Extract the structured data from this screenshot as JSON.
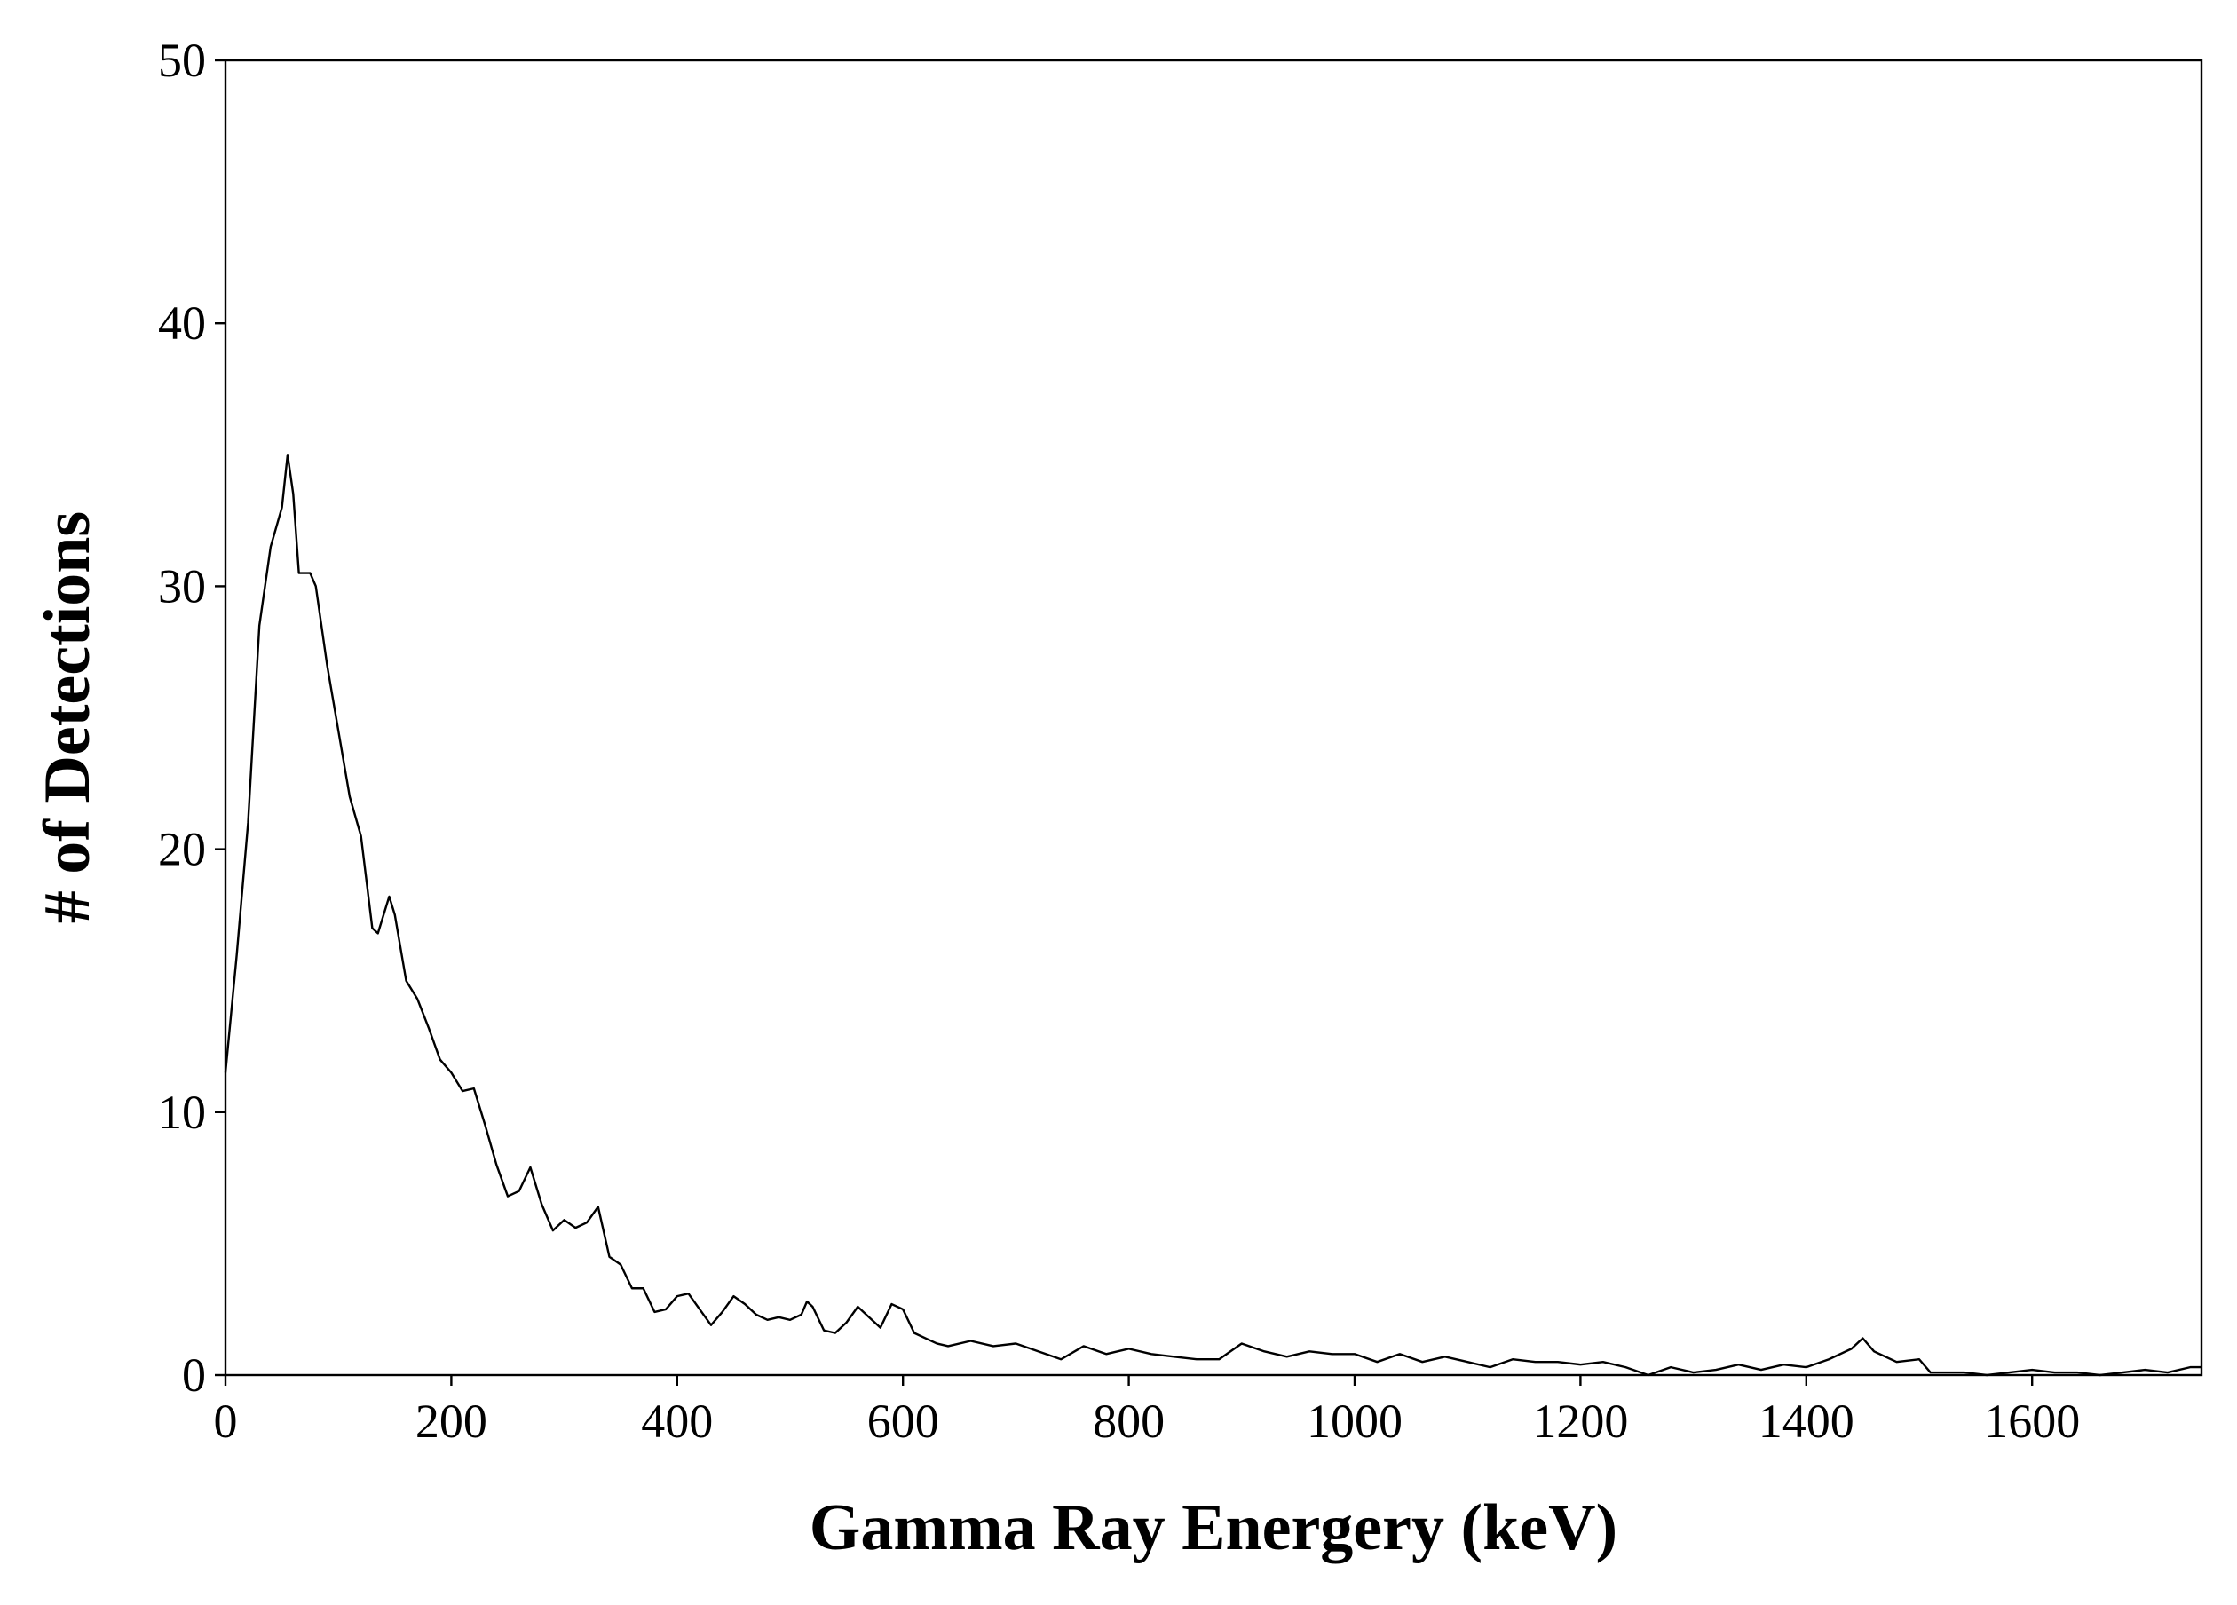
{
  "chart_data": {
    "type": "line",
    "xlabel": "Gamma Ray Energery (keV)",
    "ylabel": "# of Detections",
    "x": [
      0,
      10,
      20,
      30,
      40,
      50,
      55,
      60,
      65,
      70,
      75,
      80,
      90,
      100,
      110,
      120,
      130,
      135,
      140,
      145,
      150,
      160,
      170,
      180,
      190,
      200,
      210,
      220,
      230,
      240,
      250,
      260,
      270,
      280,
      290,
      300,
      310,
      320,
      330,
      340,
      350,
      360,
      370,
      380,
      390,
      400,
      410,
      420,
      430,
      440,
      450,
      460,
      470,
      480,
      490,
      500,
      510,
      515,
      520,
      530,
      540,
      550,
      560,
      570,
      580,
      590,
      600,
      610,
      620,
      630,
      640,
      660,
      680,
      700,
      720,
      740,
      760,
      780,
      800,
      820,
      840,
      860,
      880,
      900,
      920,
      940,
      960,
      980,
      1000,
      1020,
      1040,
      1060,
      1080,
      1100,
      1120,
      1140,
      1160,
      1180,
      1200,
      1220,
      1240,
      1260,
      1280,
      1300,
      1320,
      1340,
      1360,
      1380,
      1400,
      1420,
      1440,
      1450,
      1460,
      1480,
      1500,
      1510,
      1540,
      1560,
      1600,
      1620,
      1640,
      1660,
      1680,
      1700,
      1720,
      1740,
      1750
    ],
    "values": [
      11.5,
      16,
      21,
      28.5,
      31.5,
      33,
      35,
      33.5,
      30.5,
      30.5,
      30.5,
      30,
      27,
      24.5,
      22,
      20.5,
      17,
      16.8,
      17.5,
      18.2,
      17.5,
      15,
      14.3,
      13.2,
      12,
      11.5,
      10.8,
      10.9,
      9.5,
      8,
      6.8,
      7,
      7.9,
      6.5,
      5.5,
      5.9,
      5.6,
      5.8,
      6.4,
      4.5,
      4.2,
      3.3,
      3.3,
      2.4,
      2.5,
      3,
      3.1,
      2.5,
      1.9,
      2.4,
      3,
      2.7,
      2.3,
      2.1,
      2.2,
      2.1,
      2.3,
      2.8,
      2.6,
      1.7,
      1.6,
      2,
      2.6,
      2.2,
      1.8,
      2.7,
      2.5,
      1.6,
      1.4,
      1.2,
      1.1,
      1.3,
      1.1,
      1.2,
      0.9,
      0.6,
      1.1,
      0.8,
      1,
      0.8,
      0.7,
      0.6,
      0.6,
      1.2,
      0.9,
      0.7,
      0.9,
      0.8,
      0.8,
      0.5,
      0.8,
      0.5,
      0.7,
      0.5,
      0.3,
      0.6,
      0.5,
      0.5,
      0.4,
      0.5,
      0.3,
      0,
      0.3,
      0.1,
      0.2,
      0.4,
      0.2,
      0.4,
      0.3,
      0.6,
      1,
      1.4,
      0.9,
      0.5,
      0.6,
      0.1,
      0.1,
      0,
      0.2,
      0.1,
      0.1,
      0,
      0.1,
      0.2,
      0.1,
      0.3,
      0.3
    ],
    "color": "#000000",
    "xlim": [
      0,
      1750
    ],
    "xticks": [
      0,
      200,
      400,
      600,
      800,
      1000,
      1200,
      1400,
      1600
    ],
    "ylim": [
      0,
      50
    ],
    "yticks": [
      0,
      10,
      20,
      30,
      40,
      50
    ],
    "grid": false
  }
}
